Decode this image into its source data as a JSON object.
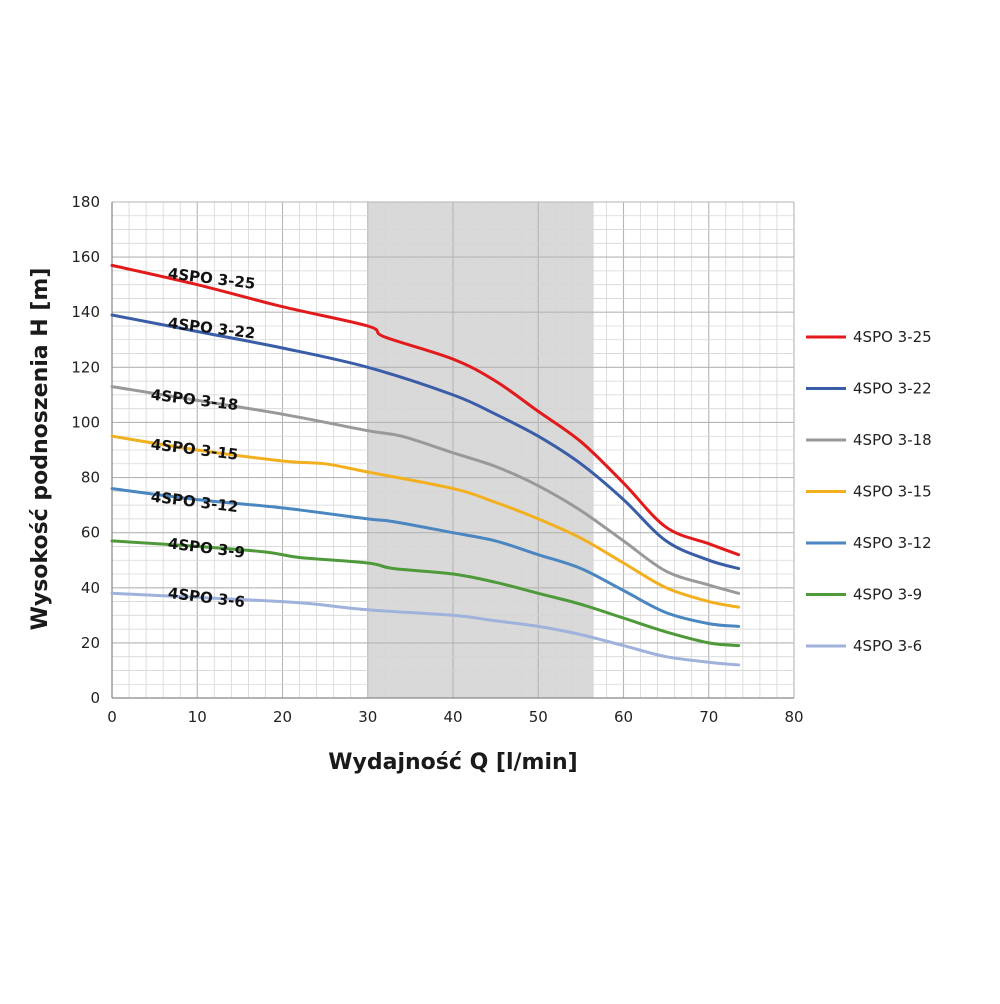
{
  "chart_data": {
    "type": "line",
    "title": "",
    "xlabel": "Wydajność Q [l/min]",
    "ylabel": "Wysokość podnoszenia H [m]",
    "xlim": [
      0,
      80
    ],
    "ylim": [
      0,
      180
    ],
    "x_ticks": [
      "0",
      "10",
      "20",
      "30",
      "40",
      "50",
      "60",
      "70",
      "80"
    ],
    "y_ticks": [
      "0",
      "20",
      "40",
      "60",
      "80",
      "100",
      "120",
      "140",
      "160",
      "180"
    ],
    "grid": true,
    "legend": "right",
    "shaded_range": [
      30,
      56.5
    ],
    "shaded_color": "#d9d9d9",
    "series": [
      {
        "name": "4SPO 3-25",
        "color": "#e31a1c",
        "label_at": [
          10,
          151
        ],
        "x": [
          0,
          10,
          20,
          30,
          32,
          40,
          45,
          50,
          55,
          60,
          65,
          70,
          73.5
        ],
        "y": [
          157,
          150,
          142,
          135,
          131,
          123,
          115,
          104,
          93,
          78,
          62,
          56,
          52
        ]
      },
      {
        "name": "4SPO 3-22",
        "color": "#3a5da8",
        "label_at": [
          10,
          133
        ],
        "x": [
          0,
          10,
          20,
          30,
          40,
          45,
          50,
          55,
          60,
          65,
          70,
          73.5
        ],
        "y": [
          139,
          133,
          127,
          120,
          110,
          103,
          95,
          85,
          72,
          57,
          50,
          47
        ]
      },
      {
        "name": "4SPO 3-18",
        "color": "#999999",
        "label_at": [
          8,
          107
        ],
        "x": [
          0,
          10,
          20,
          30,
          34,
          40,
          45,
          50,
          55,
          60,
          65,
          70,
          73.5
        ],
        "y": [
          113,
          108,
          103,
          97,
          95,
          89,
          84,
          77,
          68,
          57,
          46,
          41,
          38
        ]
      },
      {
        "name": "4SPO 3-15",
        "color": "#f2b01e",
        "label_at": [
          8,
          89
        ],
        "x": [
          0,
          10,
          20,
          25,
          30,
          40,
          45,
          50,
          55,
          60,
          65,
          70,
          73.5
        ],
        "y": [
          95,
          90,
          86,
          85,
          82,
          76,
          71,
          65,
          58,
          49,
          40,
          35,
          33
        ]
      },
      {
        "name": "4SPO 3-12",
        "color": "#4a86c0",
        "label_at": [
          8,
          70
        ],
        "x": [
          0,
          10,
          20,
          30,
          33,
          40,
          45,
          50,
          55,
          60,
          65,
          70,
          73.5
        ],
        "y": [
          76,
          72,
          69,
          65,
          64,
          60,
          57,
          52,
          47,
          39,
          31,
          27,
          26
        ]
      },
      {
        "name": "4SPO 3-9",
        "color": "#4e9a3a",
        "label_at": [
          10,
          53
        ],
        "x": [
          0,
          10,
          18,
          22,
          30,
          33,
          40,
          45,
          50,
          55,
          60,
          65,
          70,
          73.5
        ],
        "y": [
          57,
          55,
          53,
          51,
          49,
          47,
          45,
          42,
          38,
          34,
          29,
          24,
          20,
          19
        ]
      },
      {
        "name": "4SPO 3-6",
        "color": "#9fb2dc",
        "label_at": [
          10,
          35
        ],
        "x": [
          0,
          10,
          20,
          24,
          30,
          40,
          45,
          50,
          55,
          60,
          65,
          70,
          73.5
        ],
        "y": [
          38,
          36.5,
          35,
          34,
          32,
          30,
          28,
          26,
          23,
          19,
          15,
          13,
          12
        ]
      }
    ]
  }
}
